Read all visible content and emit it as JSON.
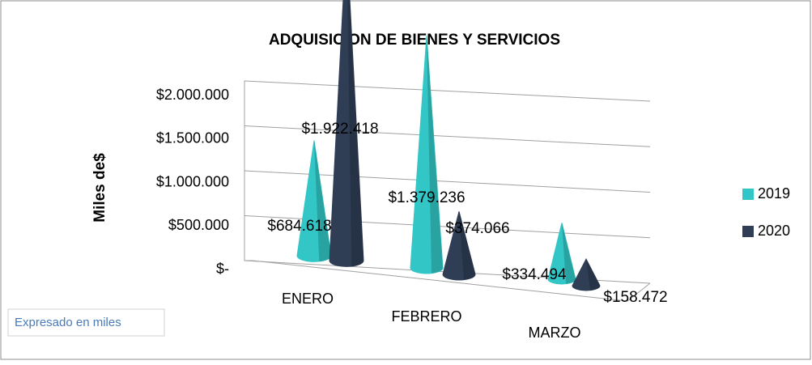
{
  "chart_data": {
    "type": "cone3d",
    "title": "ADQUISICION DE BIENES Y SERVICIOS",
    "y_label": "Miles de$",
    "annotation": "Expresado en miles",
    "categories": [
      "ENERO",
      "FEBRERO",
      "MARZO"
    ],
    "series": [
      {
        "name": "2019",
        "color": "#33c6c6",
        "values": [
          684618,
          1379236,
          334494
        ],
        "value_labels": [
          "$684.618",
          "$1.379.236",
          "$334.494"
        ]
      },
      {
        "name": "2020",
        "color": "#2f3d55",
        "values": [
          1922418,
          374066,
          158472
        ],
        "value_labels": [
          "$1.922.418",
          "$374.066",
          "$158.472"
        ]
      }
    ],
    "ylim": [
      0,
      2000000
    ],
    "yticks": [
      {
        "value": 0,
        "label": "$-"
      },
      {
        "value": 500000,
        "label": "$500.000"
      },
      {
        "value": 1000000,
        "label": "$1.000.000"
      },
      {
        "value": 1500000,
        "label": "$1.500.000"
      },
      {
        "value": 2000000,
        "label": "$2.000.000"
      }
    ],
    "grid": true,
    "legend": "right"
  }
}
